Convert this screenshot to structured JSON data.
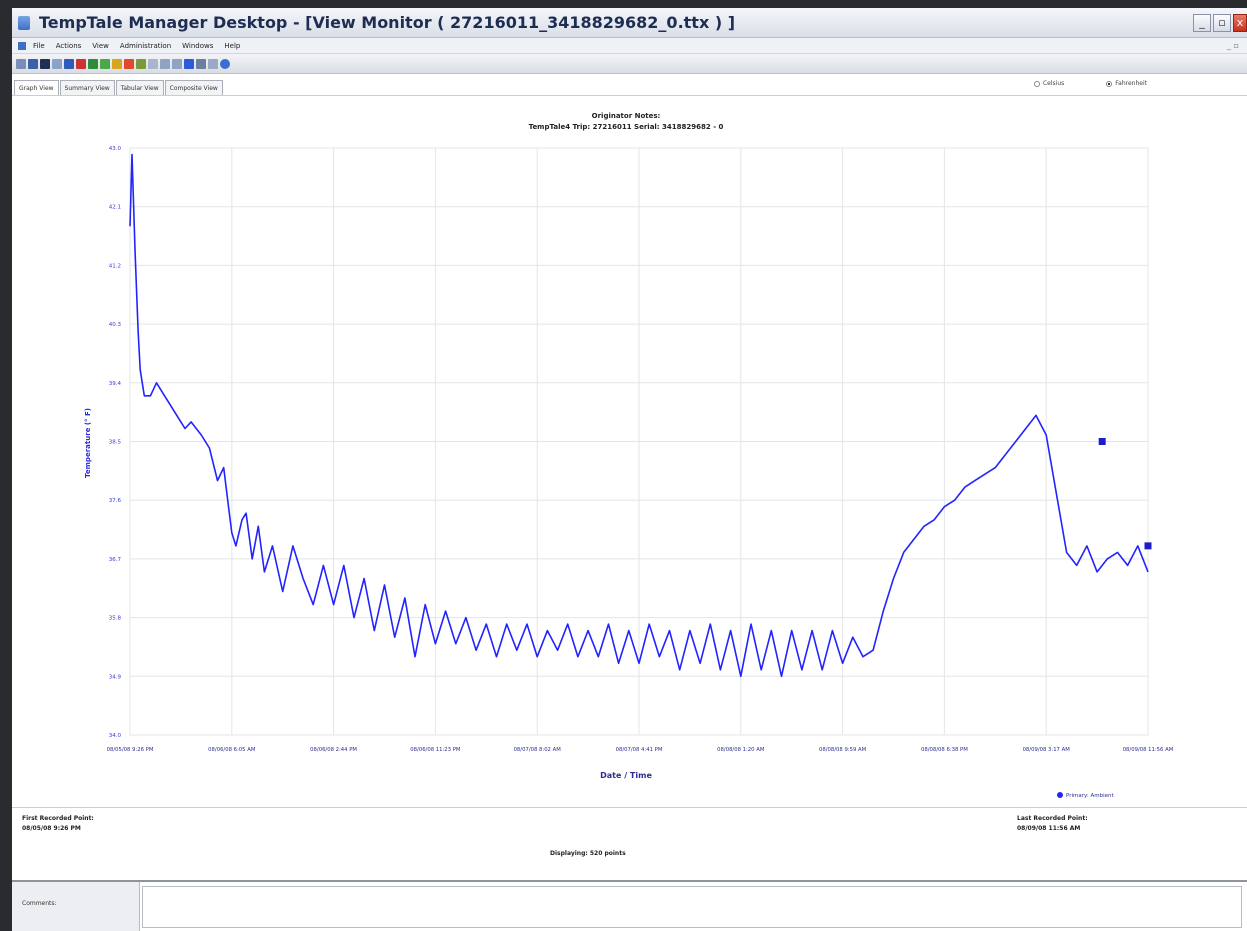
{
  "window": {
    "title": "TempTale Manager Desktop - [View Monitor ( 27216011_3418829682_0.ttx ) ]",
    "controls": [
      "_",
      "▫",
      "x"
    ],
    "mdi_controls": "_ ▫"
  },
  "menu": [
    "File",
    "Actions",
    "View",
    "Administration",
    "Windows",
    "Help"
  ],
  "toolbar_icons": [
    "open-icon",
    "save-icon",
    "print-icon",
    "copy-icon",
    "cut-icon",
    "delete-icon",
    "import-icon",
    "export-icon",
    "graph-icon",
    "alarm-icon",
    "table-icon",
    "list-icon",
    "zoom-in-icon",
    "zoom-out-icon",
    "info-icon",
    "printer-icon",
    "mail-icon",
    "help-icon"
  ],
  "tabs": [
    "Graph View",
    "Summary View",
    "Tabular View",
    "Composite View"
  ],
  "units": {
    "celsius": "Celsius",
    "fahrenheit": "Fahrenheit",
    "selected": "Fahrenheit"
  },
  "chart_notes": {
    "line1": "Originator Notes:",
    "line2": "TempTale4   Trip: 27216011   Serial: 3418829682 - 0"
  },
  "chart_data": {
    "type": "line",
    "xlabel": "Date / Time",
    "ylabel": "Temperature (° F)",
    "ylim": [
      34.0,
      43.0
    ],
    "yticks": [
      "43.0",
      "42.1",
      "41.2",
      "40.3",
      "39.4",
      "38.5",
      "37.6",
      "36.7",
      "35.8",
      "34.9",
      "34.0"
    ],
    "xticks": [
      "08/05/08 9:26 PM",
      "08/06/08 6:05 AM",
      "08/06/08 2:44 PM",
      "08/06/08 11:23 PM",
      "08/07/08 8:02 AM",
      "08/07/08 4:41 PM",
      "08/08/08 1:20 AM",
      "08/08/08 9:59 AM",
      "08/08/08 6:38 PM",
      "08/09/08 3:17 AM",
      "08/09/08 11:56 AM"
    ],
    "legend": "Primary: Ambient",
    "legend_position": "bottom-right",
    "grid": true,
    "color": "#2323ff",
    "series": [
      {
        "name": "Primary: Ambient",
        "x_tick_units": [
          0,
          0.02,
          0.05,
          0.08,
          0.1,
          0.14,
          0.2,
          0.26,
          0.3,
          0.38,
          0.46,
          0.54,
          0.6,
          0.7,
          0.78,
          0.86,
          0.92,
          0.96,
          1.0,
          1.04,
          1.1,
          1.14,
          1.2,
          1.26,
          1.32,
          1.4,
          1.5,
          1.6,
          1.7,
          1.8,
          1.9,
          2.0,
          2.1,
          2.2,
          2.3,
          2.4,
          2.5,
          2.6,
          2.7,
          2.8,
          2.9,
          3.0,
          3.1,
          3.2,
          3.3,
          3.4,
          3.5,
          3.6,
          3.7,
          3.8,
          3.9,
          4.0,
          4.1,
          4.2,
          4.3,
          4.4,
          4.5,
          4.6,
          4.7,
          4.8,
          4.9,
          5.0,
          5.1,
          5.2,
          5.3,
          5.4,
          5.5,
          5.6,
          5.7,
          5.8,
          5.9,
          6.0,
          6.1,
          6.2,
          6.3,
          6.4,
          6.5,
          6.6,
          6.7,
          6.8,
          6.9,
          7.0,
          7.1,
          7.2,
          7.3,
          7.4,
          7.5,
          7.6,
          7.7,
          7.8,
          7.9,
          8.0,
          8.1,
          8.2,
          8.3,
          8.4,
          8.5,
          8.6,
          8.7,
          8.8,
          8.9,
          9.0,
          9.1,
          9.2,
          9.3,
          9.4,
          9.5,
          9.6,
          9.7,
          9.8,
          9.9,
          10.0
        ],
        "y": [
          41.8,
          42.9,
          41.4,
          40.2,
          39.6,
          39.2,
          39.2,
          39.4,
          39.3,
          39.1,
          38.9,
          38.7,
          38.8,
          38.6,
          38.4,
          37.9,
          38.1,
          37.6,
          37.1,
          36.9,
          37.3,
          37.4,
          36.7,
          37.2,
          36.5,
          36.9,
          36.2,
          36.9,
          36.4,
          36.0,
          36.6,
          36.0,
          36.6,
          35.8,
          36.4,
          35.6,
          36.3,
          35.5,
          36.1,
          35.2,
          36.0,
          35.4,
          35.9,
          35.4,
          35.8,
          35.3,
          35.7,
          35.2,
          35.7,
          35.3,
          35.7,
          35.2,
          35.6,
          35.3,
          35.7,
          35.2,
          35.6,
          35.2,
          35.7,
          35.1,
          35.6,
          35.1,
          35.7,
          35.2,
          35.6,
          35.0,
          35.6,
          35.1,
          35.7,
          35.0,
          35.6,
          34.9,
          35.7,
          35.0,
          35.6,
          34.9,
          35.6,
          35.0,
          35.6,
          35.0,
          35.6,
          35.1,
          35.5,
          35.2,
          35.3,
          35.9,
          36.4,
          36.8,
          37.0,
          37.2,
          37.3,
          37.5,
          37.6,
          37.8,
          37.9,
          38.0,
          38.1,
          38.3,
          38.5,
          38.7,
          38.9,
          38.6,
          37.7,
          36.8,
          36.6,
          36.9,
          36.5,
          36.7,
          36.8,
          36.6,
          36.9,
          36.5
        ]
      }
    ],
    "markers": [
      {
        "x_tick_units": 9.55,
        "y": 38.5
      },
      {
        "x_tick_units": 10.0,
        "y": 36.9
      }
    ]
  },
  "footer": {
    "first_label": "First Recorded Point:",
    "first_value": "08/05/08 9:26 PM",
    "last_label": "Last Recorded Point:",
    "last_value": "08/09/08 11:56 AM",
    "displaying": "Displaying: 520 points"
  },
  "comments": {
    "label": "Comments:",
    "value": ""
  }
}
